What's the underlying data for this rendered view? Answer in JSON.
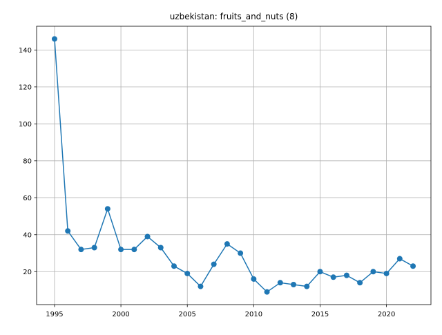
{
  "chart_data": {
    "type": "line",
    "title": "uzbekistan: fruits_and_nuts (8)",
    "xlabel": "",
    "ylabel": "",
    "xlim": [
      1993.65,
      2023.35
    ],
    "ylim": [
      2.15,
      152.85
    ],
    "grid": true,
    "x_ticks": [
      1995,
      2000,
      2005,
      2010,
      2015,
      2020
    ],
    "y_ticks": [
      20,
      40,
      60,
      80,
      100,
      120,
      140
    ],
    "series": [
      {
        "color": "#1f77b4",
        "marker": "circle",
        "points": [
          {
            "x": 1995,
            "y": 146
          },
          {
            "x": 1996,
            "y": 42
          },
          {
            "x": 1997,
            "y": 32
          },
          {
            "x": 1998,
            "y": 33
          },
          {
            "x": 1999,
            "y": 54
          },
          {
            "x": 2000,
            "y": 32
          },
          {
            "x": 2001,
            "y": 32
          },
          {
            "x": 2002,
            "y": 39
          },
          {
            "x": 2003,
            "y": 33
          },
          {
            "x": 2004,
            "y": 23
          },
          {
            "x": 2005,
            "y": 19
          },
          {
            "x": 2006,
            "y": 12
          },
          {
            "x": 2007,
            "y": 24
          },
          {
            "x": 2008,
            "y": 35
          },
          {
            "x": 2009,
            "y": 30
          },
          {
            "x": 2010,
            "y": 16
          },
          {
            "x": 2011,
            "y": 9
          },
          {
            "x": 2012,
            "y": 14
          },
          {
            "x": 2013,
            "y": 13
          },
          {
            "x": 2014,
            "y": 12
          },
          {
            "x": 2015,
            "y": 20
          },
          {
            "x": 2016,
            "y": 17
          },
          {
            "x": 2017,
            "y": 18
          },
          {
            "x": 2018,
            "y": 14
          },
          {
            "x": 2019,
            "y": 20
          },
          {
            "x": 2020,
            "y": 19
          },
          {
            "x": 2021,
            "y": 27
          },
          {
            "x": 2022,
            "y": 23
          }
        ]
      }
    ]
  }
}
